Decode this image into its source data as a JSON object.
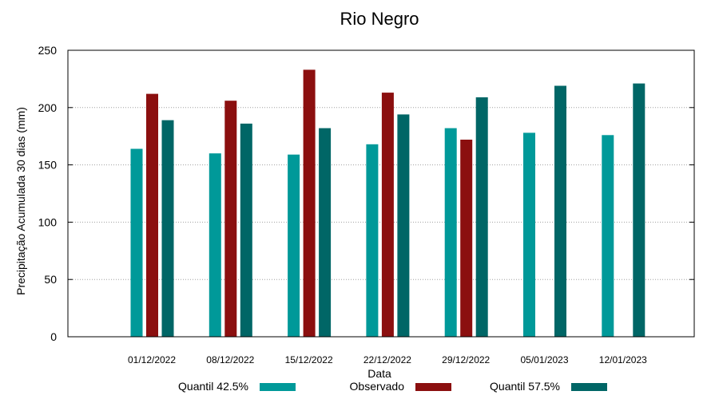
{
  "chart_data": {
    "type": "bar",
    "title": "Rio Negro",
    "xlabel": "Data",
    "ylabel": "Precipitação Acumulada 30 dias (mm)",
    "ylim": [
      0,
      250
    ],
    "yticks": [
      0,
      50,
      100,
      150,
      200,
      250
    ],
    "grid": true,
    "legend_position": "bottom",
    "categories": [
      "01/12/2022",
      "08/12/2022",
      "15/12/2022",
      "22/12/2022",
      "29/12/2022",
      "05/01/2023",
      "12/01/2023"
    ],
    "series": [
      {
        "name": "Quantil 42.5%",
        "color": "#009999",
        "values": [
          164,
          160,
          159,
          168,
          182,
          178,
          176
        ]
      },
      {
        "name": "Observado",
        "color": "#8b0f0f",
        "values": [
          212,
          206,
          233,
          213,
          172,
          null,
          null
        ]
      },
      {
        "name": "Quantil 57.5%",
        "color": "#006666",
        "values": [
          189,
          186,
          182,
          194,
          209,
          219,
          221
        ]
      }
    ]
  }
}
